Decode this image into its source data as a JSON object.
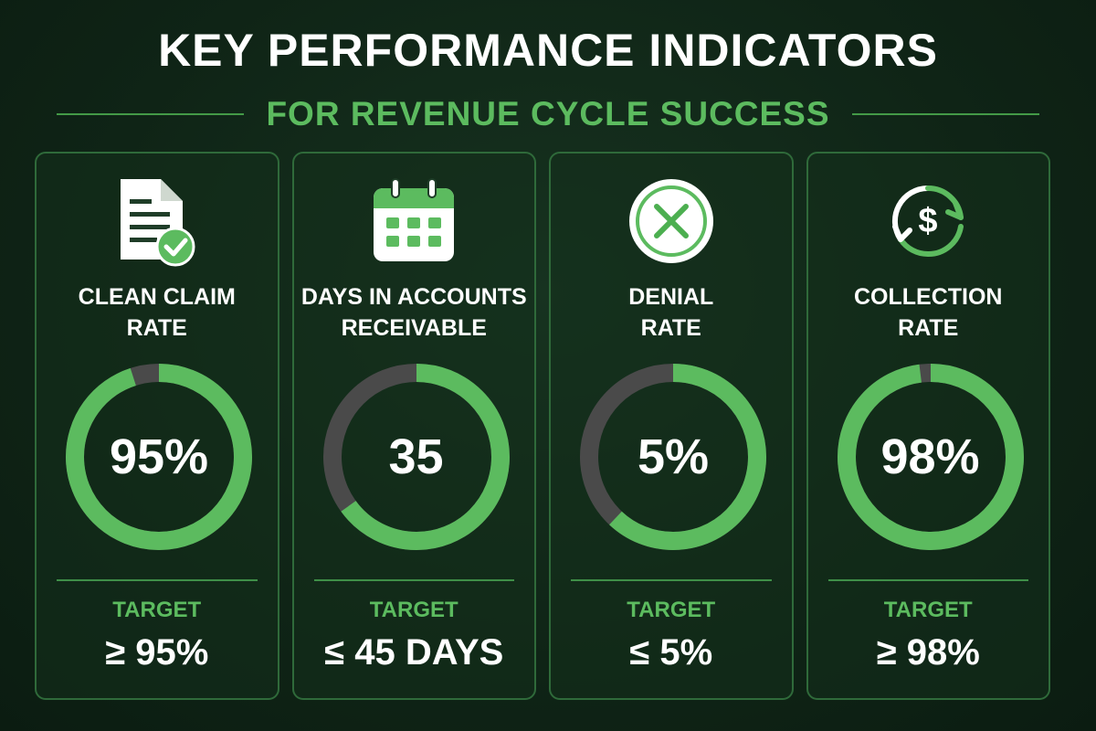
{
  "header": {
    "title": "KEY PERFORMANCE INDICATORS",
    "subtitle": "FOR REVENUE CYCLE SUCCESS"
  },
  "colors": {
    "accent": "#5cbb5f",
    "ring_fill": "#5cbb5f",
    "ring_track": "#4a4a4a"
  },
  "cards": [
    {
      "icon": "document-check-icon",
      "label_lines": [
        "CLEAN CLAIM",
        "RATE"
      ],
      "value": "95%",
      "fill_fraction": 0.95,
      "target_label": "TARGET",
      "target_value": "≥ 95%"
    },
    {
      "icon": "calendar-icon",
      "label_lines": [
        "DAYS IN ACCOUNTS",
        "RECEIVABLE"
      ],
      "value": "35",
      "fill_fraction": 0.65,
      "target_label": "TARGET",
      "target_value": "≤ 45 DAYS"
    },
    {
      "icon": "x-circle-icon",
      "label_lines": [
        "DENIAL",
        "RATE"
      ],
      "value": "5%",
      "fill_fraction": 0.62,
      "target_label": "TARGET",
      "target_value": "≤ 5%"
    },
    {
      "icon": "dollar-cycle-icon",
      "label_lines": [
        "COLLECTION",
        "RATE"
      ],
      "value": "98%",
      "fill_fraction": 0.98,
      "target_label": "TARGET",
      "target_value": "≥ 98%"
    }
  ]
}
